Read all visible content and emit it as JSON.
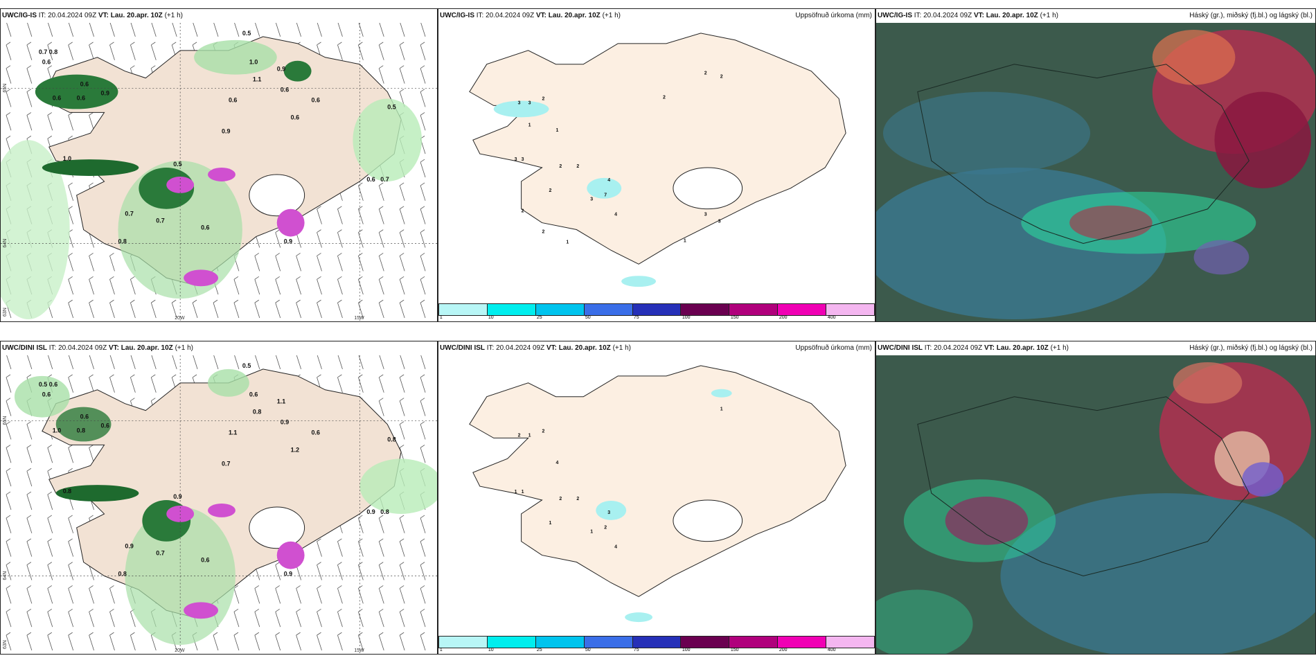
{
  "rows": [
    {
      "model": "UWC/IG-IS",
      "it": "IT: 20.04.2024 09Z",
      "vt_label": "VT:",
      "vt": "Lau. 20.apr. 10Z",
      "lead": "(+1 h)",
      "left_labels": [
        "0.7",
        "0.8",
        "0.6",
        "0.6",
        "0.6",
        "0.6",
        "0.9",
        "1.0",
        "0.5",
        "0.7",
        "0.6",
        "0.7",
        "0.8",
        "0.6",
        "0.9",
        "0.5",
        "1.1",
        "0.6",
        "0.6",
        "0.9",
        "0.6",
        "0.5",
        "0.6",
        "0.7",
        "1.0",
        "0.9"
      ],
      "mid_labels": [
        "2",
        "3",
        "3",
        "2",
        "3",
        "1",
        "2",
        "3",
        "2",
        "2",
        "4",
        "7",
        "3",
        "4",
        "2",
        "2",
        "1",
        "3",
        "3",
        "1",
        "2",
        "1",
        "2"
      ]
    },
    {
      "model": "UWC/DINI ISL",
      "it": "IT: 20.04.2024 09Z",
      "vt_label": "VT:",
      "vt": "Lau. 20.apr. 10Z",
      "lead": "(+1 h)",
      "left_labels": [
        "0.5",
        "0.6",
        "0.6",
        "0.6",
        "1.0",
        "0.8",
        "0.6",
        "0.8",
        "0.9",
        "0.7",
        "0.6",
        "0.9",
        "0.8",
        "1.1",
        "0.7",
        "0.5",
        "0.8",
        "0.9",
        "0.6",
        "0.9",
        "1.2",
        "0.8",
        "0.9",
        "0.8",
        "0.6",
        "1.1"
      ],
      "mid_labels": [
        "1",
        "2",
        "1",
        "2",
        "1",
        "4",
        "2",
        "1",
        "2",
        "1",
        "3",
        "2",
        "1",
        "4"
      ]
    }
  ],
  "precip_title": "Uppsöfnuð úrkoma (mm)",
  "cloud_title": "Háský (gr.), miðský (fj.bl.) og lágský (bl.)",
  "colorbar": {
    "ticks": [
      "1",
      "10",
      "25",
      "50",
      "75",
      "100",
      "150",
      "200",
      "400"
    ],
    "colors": [
      "#b8f6f6",
      "#00eeee",
      "#00c4ee",
      "#3a6ee8",
      "#2630b8",
      "#6a0050",
      "#b0007c",
      "#f000b4",
      "#f4b6f0"
    ]
  },
  "axes": {
    "lat_labels": [
      "65N",
      "64N",
      "63N"
    ],
    "lon_labels": [
      "20W",
      "15W"
    ]
  },
  "colors": {
    "land": "#f8ece0",
    "green_light": "#c8f0c8",
    "green_mid": "#4ca84c",
    "green_dark": "#0e4a1e",
    "magenta": "#d050d0",
    "cloud_bg": "#3c5c50",
    "cloud_blue": "#3a7890",
    "cloud_green": "#2ae0a0",
    "cloud_red": "#b03050"
  }
}
